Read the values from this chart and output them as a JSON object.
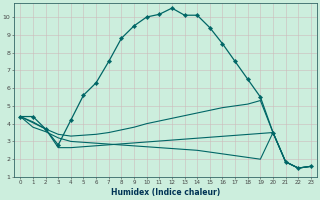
{
  "xlabel": "Humidex (Indice chaleur)",
  "bg_color": "#cceedd",
  "grid_color_major": "#b0cccc",
  "grid_color_minor": "#d0e8e8",
  "line_color": "#006666",
  "xlim": [
    -0.5,
    23.5
  ],
  "ylim": [
    1,
    10.8
  ],
  "xticks": [
    0,
    1,
    2,
    3,
    4,
    5,
    6,
    7,
    8,
    9,
    10,
    11,
    12,
    13,
    14,
    15,
    16,
    17,
    18,
    19,
    20,
    21,
    22,
    23
  ],
  "yticks": [
    1,
    2,
    3,
    4,
    5,
    6,
    7,
    8,
    9,
    10
  ],
  "line1_x": [
    0,
    1,
    2,
    3,
    4,
    5,
    6,
    7,
    8,
    9,
    10,
    11,
    12,
    13,
    14,
    15,
    16,
    17,
    18,
    19,
    20,
    21,
    22,
    23
  ],
  "line1_y": [
    4.4,
    4.4,
    3.7,
    2.8,
    4.2,
    5.6,
    6.3,
    7.5,
    8.8,
    9.5,
    10.0,
    10.15,
    10.5,
    10.1,
    10.1,
    9.4,
    8.5,
    7.5,
    6.5,
    5.5,
    3.5,
    1.85,
    1.5,
    1.6
  ],
  "line2_x": [
    0,
    1,
    2,
    3,
    4,
    5,
    6,
    7,
    8,
    9,
    10,
    11,
    12,
    13,
    14,
    15,
    16,
    17,
    18,
    19,
    20,
    21,
    22,
    23
  ],
  "line2_y": [
    4.4,
    4.1,
    3.7,
    3.4,
    3.3,
    3.35,
    3.4,
    3.5,
    3.65,
    3.8,
    4.0,
    4.15,
    4.3,
    4.45,
    4.6,
    4.75,
    4.9,
    5.0,
    5.1,
    5.3,
    3.5,
    1.85,
    1.5,
    1.6
  ],
  "line3_x": [
    0,
    1,
    2,
    3,
    4,
    5,
    6,
    7,
    8,
    9,
    10,
    11,
    12,
    13,
    14,
    15,
    16,
    17,
    18,
    19,
    20,
    21,
    22,
    23
  ],
  "line3_y": [
    4.4,
    3.8,
    3.55,
    3.2,
    3.0,
    2.95,
    2.9,
    2.85,
    2.8,
    2.75,
    2.7,
    2.65,
    2.6,
    2.55,
    2.5,
    2.4,
    2.3,
    2.2,
    2.1,
    2.0,
    3.5,
    1.85,
    1.5,
    1.6
  ],
  "line4_x": [
    0,
    2,
    3,
    4,
    20,
    21,
    22,
    23
  ],
  "line4_y": [
    4.4,
    3.7,
    2.65,
    2.65,
    3.5,
    1.85,
    1.5,
    1.6
  ]
}
